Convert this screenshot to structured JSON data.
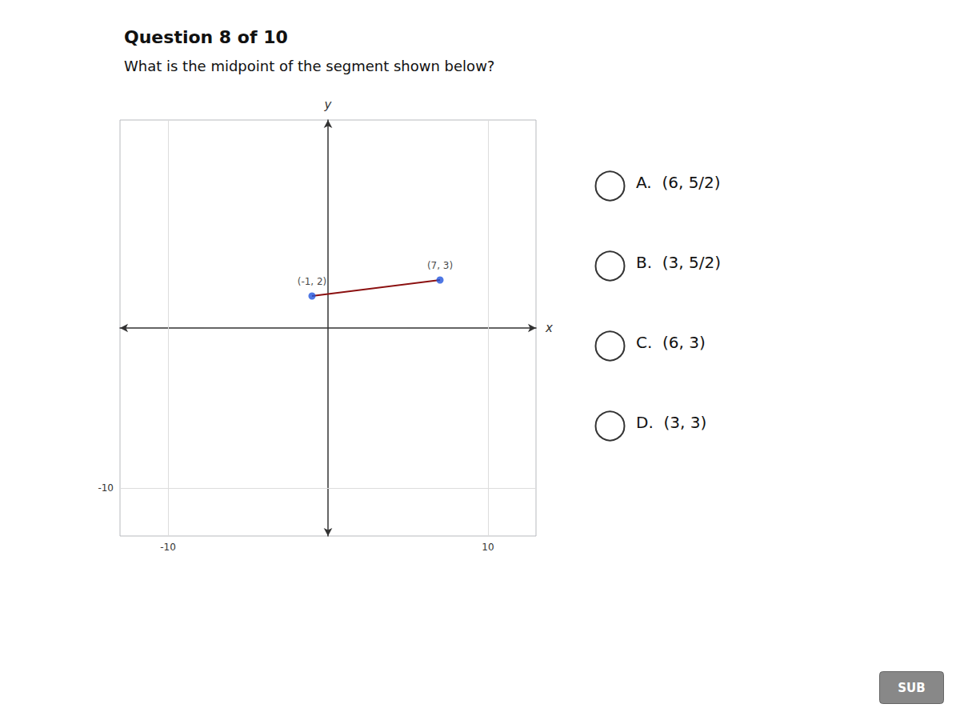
{
  "chart_data": {
    "type": "line",
    "title": "Question 8 of 10",
    "subtitle": "What is the midpoint of the segment shown below?",
    "xlabel": "x",
    "ylabel": "y",
    "x": [
      -1,
      7
    ],
    "series": [
      {
        "type": "line",
        "color": "#8B1010",
        "values": [
          2,
          3
        ]
      },
      {
        "type": "scatter",
        "color": "#2255dd",
        "values": [
          2,
          3
        ],
        "value_labels": [
          "(-1, 2)",
          "(7, 3)"
        ]
      }
    ],
    "xlim": [
      -13,
      13
    ],
    "ylim": [
      -13,
      13
    ],
    "xticks": [
      -10,
      10
    ],
    "yticks": [
      -10
    ],
    "grid": true,
    "annotations": [
      "A.  (6, 5/2)",
      "B.  (3, 5/2)",
      "C.  (6, 3)",
      "D.  (3, 3)",
      "SUB"
    ]
  }
}
